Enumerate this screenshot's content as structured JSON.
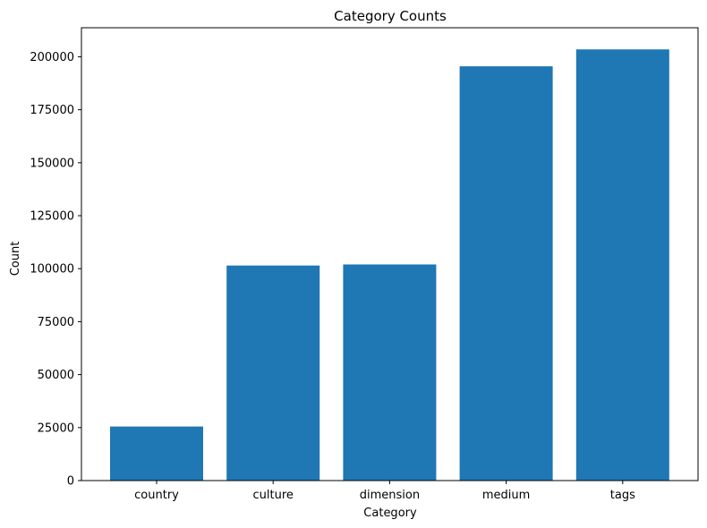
{
  "chart_data": {
    "type": "bar",
    "title": "Category Counts",
    "xlabel": "Category",
    "ylabel": "Count",
    "categories": [
      "country",
      "culture",
      "dimension",
      "medium",
      "tags"
    ],
    "values": [
      25500,
      101500,
      102000,
      195500,
      203500
    ],
    "ylim": [
      0,
      213700
    ],
    "yticks": [
      0,
      25000,
      50000,
      75000,
      100000,
      125000,
      150000,
      175000,
      200000
    ],
    "grid": false,
    "bar_color": "#1f77b4"
  }
}
